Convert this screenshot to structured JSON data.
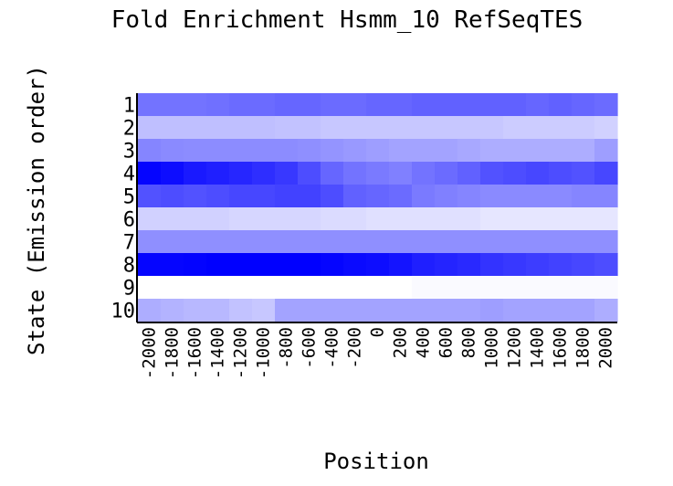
{
  "chart_data": {
    "type": "heatmap",
    "title": "Fold Enrichment Hsmm_10 RefSeqTES",
    "xlabel": "Position",
    "ylabel": "State (Emission order)",
    "x": [
      "-2000",
      "-1800",
      "-1600",
      "-1400",
      "-1200",
      "-1000",
      "-800",
      "-600",
      "-400",
      "-200",
      "0",
      "200",
      "400",
      "600",
      "800",
      "1000",
      "1200",
      "1400",
      "1600",
      "1800",
      "2000"
    ],
    "y": [
      "1",
      "2",
      "3",
      "4",
      "5",
      "6",
      "7",
      "8",
      "9",
      "10"
    ],
    "values": [
      [
        0.55,
        0.55,
        0.55,
        0.56,
        0.58,
        0.58,
        0.6,
        0.6,
        0.58,
        0.58,
        0.6,
        0.6,
        0.62,
        0.62,
        0.62,
        0.62,
        0.62,
        0.6,
        0.62,
        0.6,
        0.58
      ],
      [
        0.25,
        0.25,
        0.25,
        0.25,
        0.25,
        0.25,
        0.24,
        0.24,
        0.22,
        0.22,
        0.22,
        0.22,
        0.22,
        0.22,
        0.22,
        0.22,
        0.2,
        0.2,
        0.2,
        0.2,
        0.18
      ],
      [
        0.48,
        0.46,
        0.45,
        0.45,
        0.45,
        0.45,
        0.45,
        0.44,
        0.42,
        0.4,
        0.38,
        0.36,
        0.36,
        0.36,
        0.34,
        0.32,
        0.32,
        0.32,
        0.32,
        0.32,
        0.38
      ],
      [
        0.98,
        0.95,
        0.9,
        0.88,
        0.85,
        0.82,
        0.78,
        0.7,
        0.6,
        0.55,
        0.52,
        0.5,
        0.55,
        0.58,
        0.62,
        0.68,
        0.7,
        0.72,
        0.7,
        0.68,
        0.72
      ],
      [
        0.68,
        0.7,
        0.68,
        0.7,
        0.72,
        0.72,
        0.74,
        0.74,
        0.7,
        0.62,
        0.6,
        0.58,
        0.52,
        0.5,
        0.48,
        0.46,
        0.46,
        0.46,
        0.46,
        0.48,
        0.48
      ],
      [
        0.18,
        0.18,
        0.18,
        0.18,
        0.16,
        0.16,
        0.16,
        0.16,
        0.14,
        0.14,
        0.12,
        0.12,
        0.12,
        0.12,
        0.12,
        0.1,
        0.1,
        0.1,
        0.1,
        0.1,
        0.1
      ],
      [
        0.44,
        0.44,
        0.44,
        0.44,
        0.44,
        0.44,
        0.44,
        0.44,
        0.44,
        0.44,
        0.44,
        0.44,
        0.44,
        0.44,
        0.44,
        0.44,
        0.44,
        0.44,
        0.44,
        0.44,
        0.44
      ],
      [
        0.98,
        0.98,
        0.99,
        1.0,
        1.0,
        1.0,
        1.0,
        1.0,
        0.98,
        0.96,
        0.95,
        0.92,
        0.88,
        0.86,
        0.84,
        0.8,
        0.78,
        0.76,
        0.74,
        0.72,
        0.7
      ],
      [
        0.0,
        0.0,
        0.0,
        0.0,
        0.0,
        0.0,
        0.0,
        0.0,
        0.0,
        0.0,
        0.0,
        0.0,
        0.02,
        0.02,
        0.02,
        0.02,
        0.02,
        0.02,
        0.02,
        0.02,
        0.02
      ],
      [
        0.32,
        0.3,
        0.28,
        0.28,
        0.24,
        0.22,
        0.36,
        0.36,
        0.36,
        0.36,
        0.36,
        0.36,
        0.36,
        0.36,
        0.36,
        0.38,
        0.36,
        0.36,
        0.36,
        0.36,
        0.32
      ]
    ],
    "colors": {
      "low": "#ffffff",
      "high": "#0000ff"
    }
  }
}
